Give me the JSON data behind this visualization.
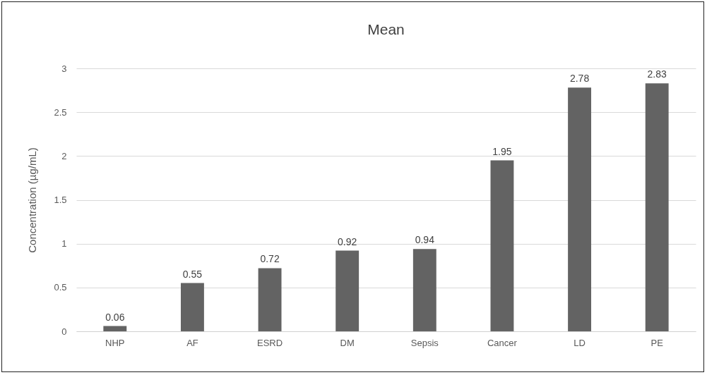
{
  "chart_data": {
    "type": "bar",
    "title": "Mean",
    "ylabel": "Concentration (µg/mL)",
    "categories": [
      "NHP",
      "AF",
      "ESRD",
      "DM",
      "Sepsis",
      "Cancer",
      "LD",
      "PE"
    ],
    "values": [
      0.06,
      0.55,
      0.72,
      0.92,
      0.94,
      1.95,
      2.78,
      2.83
    ],
    "color": "#636363",
    "ylim": [
      0,
      3
    ],
    "yticks": [
      0,
      0.5,
      1,
      1.5,
      2,
      2.5,
      3
    ],
    "grid": "y",
    "data_labels": true
  }
}
